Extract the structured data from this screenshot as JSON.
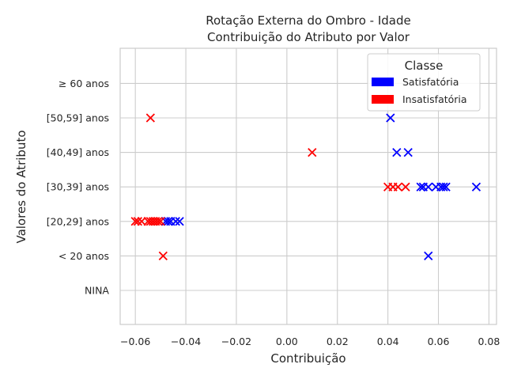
{
  "chart_data": {
    "type": "scatter",
    "title": "Rotação Externa do Ombro - Idade",
    "subtitle": "Contribuição do Atributo por Valor",
    "xlabel": "Contribuição",
    "ylabel": "Valores do Atributo",
    "xlim": [
      -0.066,
      0.083
    ],
    "x_ticks": [
      -0.06,
      -0.04,
      -0.02,
      0.0,
      0.02,
      0.04,
      0.06,
      0.08
    ],
    "x_tick_labels": [
      "−0.06",
      "−0.04",
      "−0.02",
      "0.00",
      "0.02",
      "0.04",
      "0.06",
      "0.08"
    ],
    "categories": [
      "NINA",
      "< 20 anos",
      "[20,29] anos",
      "[30,39] anos",
      "[40,49] anos",
      "[50,59] anos",
      "≥ 60 anos"
    ],
    "grid": true,
    "legend_position": "top-right",
    "legend_title": "Classe",
    "series": [
      {
        "name": "Satisfatória",
        "color": "#0000ff",
        "points": [
          {
            "category": "< 20 anos",
            "x": 0.056
          },
          {
            "category": "[20,29] anos",
            "x": -0.0425
          },
          {
            "category": "[20,29] anos",
            "x": -0.044
          },
          {
            "category": "[20,29] anos",
            "x": -0.046
          },
          {
            "category": "[20,29] anos",
            "x": -0.047
          },
          {
            "category": "[20,29] anos",
            "x": -0.048
          },
          {
            "category": "[30,39] anos",
            "x": 0.053
          },
          {
            "category": "[30,39] anos",
            "x": 0.054
          },
          {
            "category": "[30,39] anos",
            "x": 0.056
          },
          {
            "category": "[30,39] anos",
            "x": 0.059
          },
          {
            "category": "[30,39] anos",
            "x": 0.061
          },
          {
            "category": "[30,39] anos",
            "x": 0.062
          },
          {
            "category": "[30,39] anos",
            "x": 0.063
          },
          {
            "category": "[30,39] anos",
            "x": 0.075
          },
          {
            "category": "[40,49] anos",
            "x": 0.0435
          },
          {
            "category": "[40,49] anos",
            "x": 0.048
          },
          {
            "category": "[50,59] anos",
            "x": 0.041
          }
        ]
      },
      {
        "name": "Insatisfatória",
        "color": "#ff0000",
        "points": [
          {
            "category": "< 20 anos",
            "x": -0.049
          },
          {
            "category": "[20,29] anos",
            "x": -0.06
          },
          {
            "category": "[20,29] anos",
            "x": -0.059
          },
          {
            "category": "[20,29] anos",
            "x": -0.0575
          },
          {
            "category": "[20,29] anos",
            "x": -0.055
          },
          {
            "category": "[20,29] anos",
            "x": -0.054
          },
          {
            "category": "[20,29] anos",
            "x": -0.053
          },
          {
            "category": "[20,29] anos",
            "x": -0.052
          },
          {
            "category": "[20,29] anos",
            "x": -0.051
          },
          {
            "category": "[20,29] anos",
            "x": -0.05
          },
          {
            "category": "[30,39] anos",
            "x": 0.04
          },
          {
            "category": "[30,39] anos",
            "x": 0.042
          },
          {
            "category": "[30,39] anos",
            "x": 0.044
          },
          {
            "category": "[30,39] anos",
            "x": 0.047
          },
          {
            "category": "[40,49] anos",
            "x": 0.01
          },
          {
            "category": "[50,59] anos",
            "x": -0.054
          }
        ]
      }
    ]
  }
}
